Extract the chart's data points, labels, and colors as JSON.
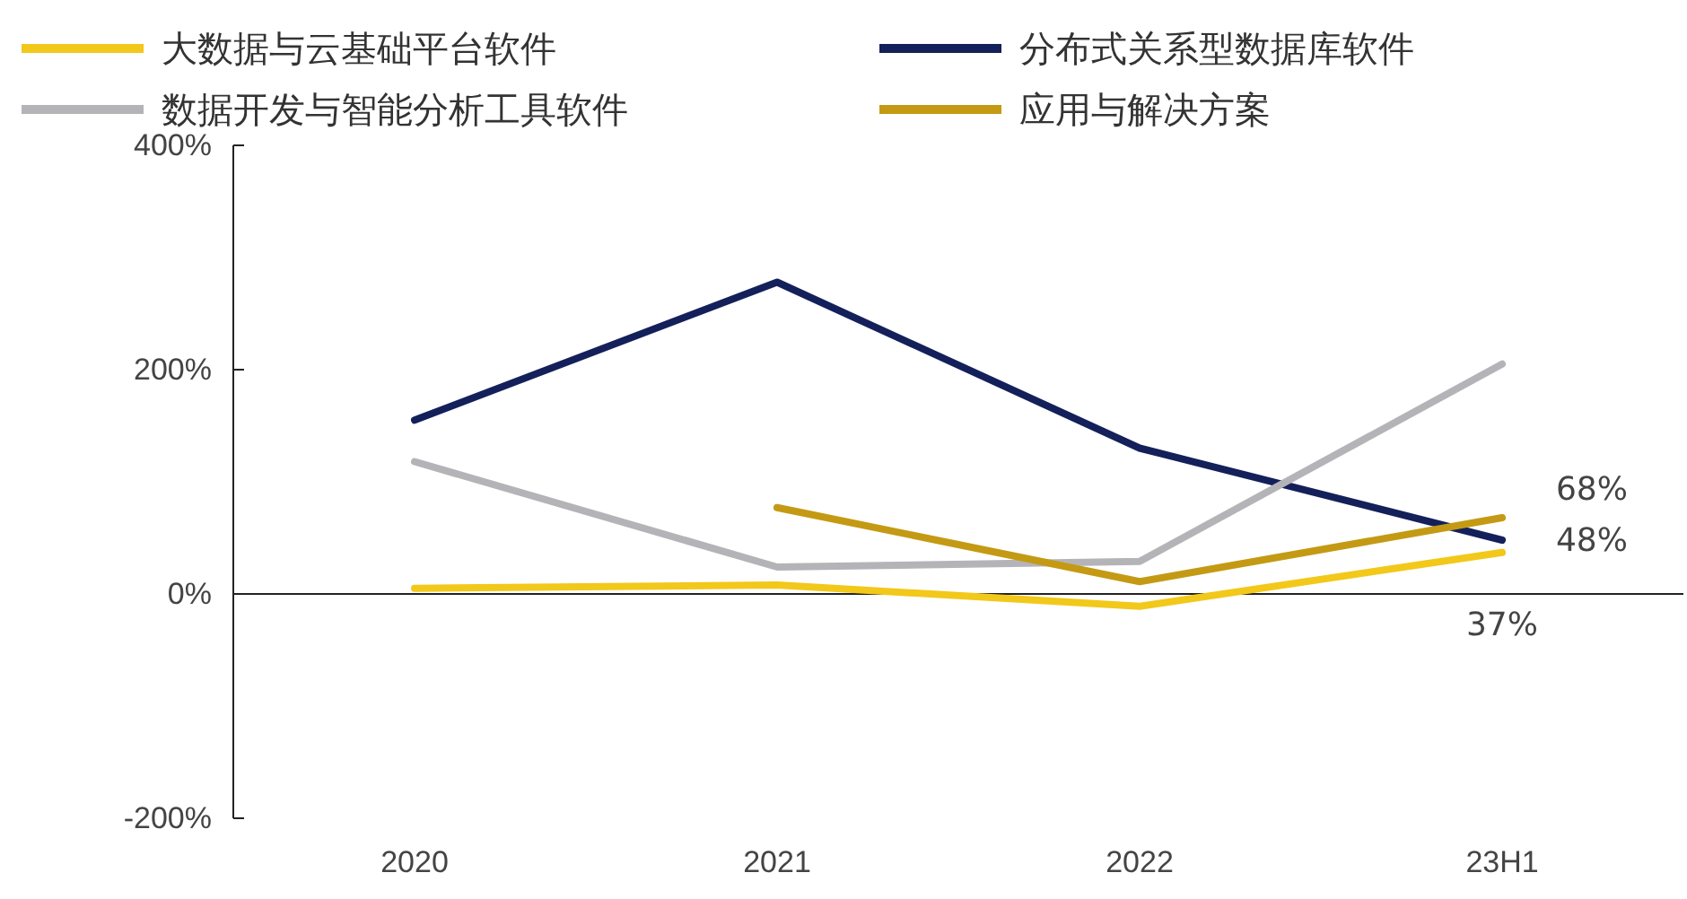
{
  "chart_data": {
    "type": "line",
    "categories": [
      "2020",
      "2021",
      "2022",
      "23H1"
    ],
    "series": [
      {
        "name": "大数据与云基础平台软件",
        "color": "#f2c81a",
        "values": [
          5,
          8,
          -11,
          37
        ],
        "value_labels": [
          null,
          null,
          null,
          "37%"
        ]
      },
      {
        "name": "分布式关系型数据库软件",
        "color": "#14205a",
        "values": [
          155,
          278,
          130,
          48
        ],
        "value_labels": [
          null,
          null,
          null,
          "48%"
        ]
      },
      {
        "name": "数据开发与智能分析工具软件",
        "color": "#b4b4b8",
        "values": [
          118,
          24,
          29,
          205
        ],
        "value_labels": [
          null,
          null,
          null,
          null
        ]
      },
      {
        "name": "应用与解决方案",
        "color": "#c49a14",
        "values": [
          null,
          77,
          11,
          68
        ],
        "value_labels": [
          null,
          null,
          null,
          "68%"
        ]
      }
    ],
    "ylim": [
      -200,
      400
    ],
    "yticks": [
      {
        "value": -200,
        "label": "-200%"
      },
      {
        "value": 0,
        "label": "0%"
      },
      {
        "value": 200,
        "label": "200%"
      },
      {
        "value": 400,
        "label": "400%"
      }
    ],
    "legend": "top",
    "marker": "none",
    "line_style": "solid"
  }
}
